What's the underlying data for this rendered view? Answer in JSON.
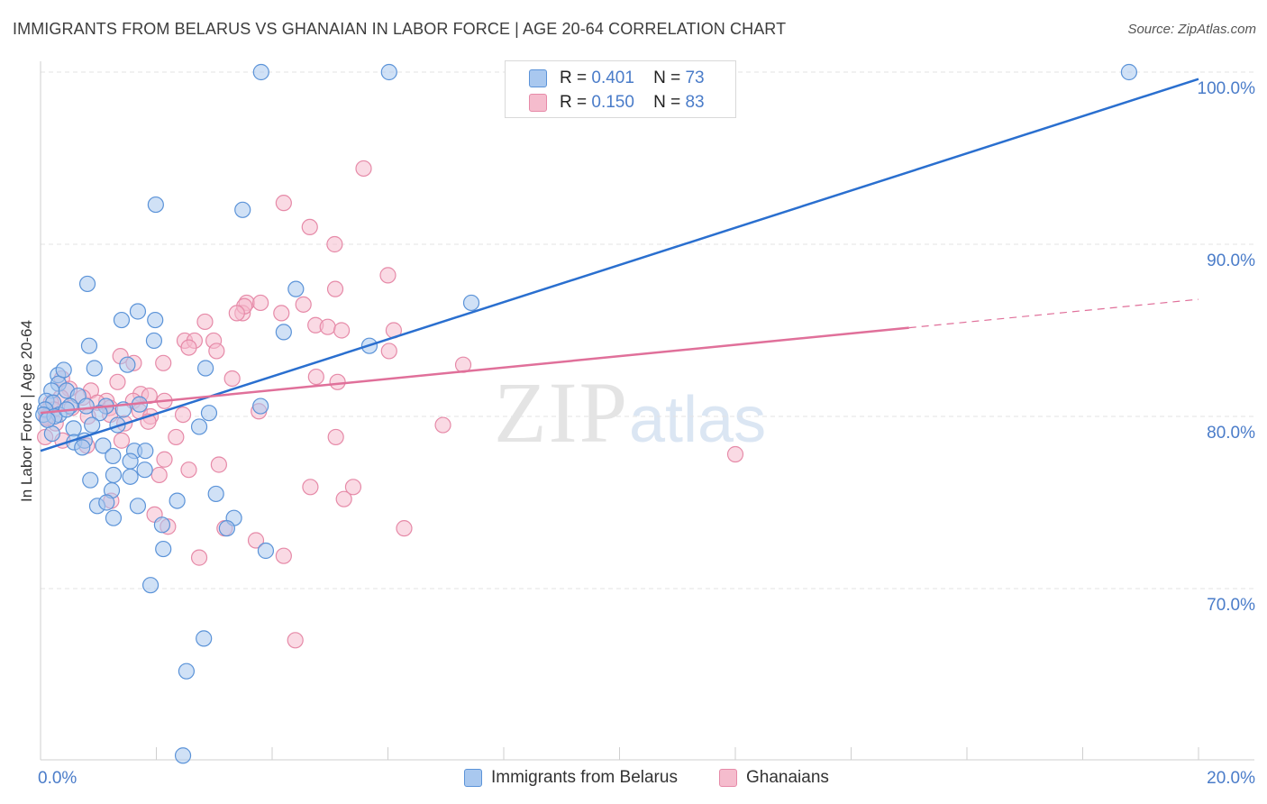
{
  "title": "IMMIGRANTS FROM BELARUS VS GHANAIAN IN LABOR FORCE | AGE 20-64 CORRELATION CHART",
  "source": "Source: ZipAtlas.com",
  "watermark": {
    "zip": "ZIP",
    "atlas": "atlas"
  },
  "stats": {
    "belarus": {
      "r_label": "R =",
      "r_value": "0.401",
      "n_label": "N =",
      "n_value": "73"
    },
    "ghana": {
      "r_label": "R =",
      "r_value": "0.150",
      "n_label": "N =",
      "n_value": "83"
    }
  },
  "legend": {
    "belarus": "Immigrants from Belarus",
    "ghana": "Ghanaians"
  },
  "colors": {
    "blue_fill": "#a9c8ef",
    "blue_stroke": "#5b93d8",
    "blue_line": "#2a6fcf",
    "pink_fill": "#f5bccd",
    "pink_stroke": "#e68aa8",
    "pink_line": "#e0709a",
    "grid": "#e3e3e3"
  },
  "chart_data": {
    "type": "scatter",
    "title": "IMMIGRANTS FROM BELARUS VS GHANAIAN IN LABOR FORCE | AGE 20-64 CORRELATION CHART",
    "xlabel": "",
    "ylabel": "In Labor Force | Age 20-64",
    "xlim": [
      0,
      20
    ],
    "ylim": [
      60,
      101.5
    ],
    "x_tick_labels": [
      "0.0%",
      "20.0%"
    ],
    "y_ticks": [
      70,
      80,
      90,
      100
    ],
    "y_tick_labels": [
      "70.0%",
      "80.0%",
      "90.0%",
      "100.0%"
    ],
    "grid": true,
    "series": [
      {
        "name": "Immigrants from Belarus",
        "r": 0.401,
        "n": 73,
        "trend": {
          "x": [
            0,
            20
          ],
          "y": [
            78.0,
            99.6
          ],
          "dashed_from": null
        },
        "points": [
          [
            3.81,
            100.0
          ],
          [
            6.02,
            100.0
          ],
          [
            18.8,
            100.0
          ],
          [
            1.99,
            92.3
          ],
          [
            3.49,
            92.0
          ],
          [
            0.81,
            87.7
          ],
          [
            4.41,
            87.4
          ],
          [
            7.44,
            86.6
          ],
          [
            1.68,
            86.1
          ],
          [
            1.4,
            85.6
          ],
          [
            1.98,
            85.6
          ],
          [
            4.2,
            84.9
          ],
          [
            1.96,
            84.4
          ],
          [
            0.84,
            84.1
          ],
          [
            5.68,
            84.1
          ],
          [
            1.5,
            83.0
          ],
          [
            0.93,
            82.8
          ],
          [
            2.85,
            82.8
          ],
          [
            0.3,
            82.4
          ],
          [
            0.31,
            81.9
          ],
          [
            0.4,
            82.7
          ],
          [
            0.19,
            81.5
          ],
          [
            0.45,
            81.5
          ],
          [
            0.65,
            81.2
          ],
          [
            0.1,
            80.9
          ],
          [
            0.22,
            80.8
          ],
          [
            0.51,
            80.6
          ],
          [
            0.79,
            80.6
          ],
          [
            1.13,
            80.6
          ],
          [
            1.43,
            80.4
          ],
          [
            0.08,
            80.4
          ],
          [
            0.32,
            80.1
          ],
          [
            0.05,
            80.1
          ],
          [
            0.24,
            80.0
          ],
          [
            1.02,
            80.2
          ],
          [
            1.71,
            80.7
          ],
          [
            2.91,
            80.2
          ],
          [
            3.8,
            80.6
          ],
          [
            0.89,
            79.5
          ],
          [
            1.33,
            79.5
          ],
          [
            0.57,
            79.3
          ],
          [
            0.2,
            79.0
          ],
          [
            2.74,
            79.4
          ],
          [
            0.58,
            78.5
          ],
          [
            0.76,
            78.6
          ],
          [
            1.08,
            78.3
          ],
          [
            0.72,
            78.2
          ],
          [
            1.62,
            78.0
          ],
          [
            1.81,
            78.0
          ],
          [
            1.25,
            77.7
          ],
          [
            1.55,
            77.4
          ],
          [
            1.8,
            76.9
          ],
          [
            1.26,
            76.6
          ],
          [
            0.86,
            76.3
          ],
          [
            1.55,
            76.5
          ],
          [
            3.03,
            75.5
          ],
          [
            1.23,
            75.7
          ],
          [
            2.36,
            75.1
          ],
          [
            0.98,
            74.8
          ],
          [
            1.14,
            75.0
          ],
          [
            1.68,
            74.8
          ],
          [
            1.26,
            74.1
          ],
          [
            3.34,
            74.1
          ],
          [
            2.1,
            73.7
          ],
          [
            3.22,
            73.5
          ],
          [
            2.12,
            72.3
          ],
          [
            3.89,
            72.2
          ],
          [
            1.9,
            70.2
          ],
          [
            2.82,
            67.1
          ],
          [
            2.52,
            65.2
          ],
          [
            2.46,
            60.3
          ],
          [
            0.12,
            79.8
          ],
          [
            0.45,
            80.4
          ]
        ]
      },
      {
        "name": "Ghanaians",
        "r": 0.15,
        "n": 83,
        "trend": {
          "x": [
            0,
            20
          ],
          "y": [
            80.2,
            86.8
          ],
          "dashed_from": 15.0
        },
        "points": [
          [
            5.58,
            94.4
          ],
          [
            4.2,
            92.4
          ],
          [
            4.65,
            91.0
          ],
          [
            5.08,
            90.0
          ],
          [
            6.0,
            88.2
          ],
          [
            5.09,
            87.4
          ],
          [
            3.56,
            86.6
          ],
          [
            3.8,
            86.6
          ],
          [
            4.54,
            86.5
          ],
          [
            3.49,
            86.0
          ],
          [
            3.52,
            86.4
          ],
          [
            3.39,
            86.0
          ],
          [
            4.16,
            86.0
          ],
          [
            2.84,
            85.5
          ],
          [
            4.75,
            85.3
          ],
          [
            4.96,
            85.2
          ],
          [
            5.2,
            85.0
          ],
          [
            6.1,
            85.0
          ],
          [
            2.49,
            84.4
          ],
          [
            2.66,
            84.4
          ],
          [
            2.99,
            84.4
          ],
          [
            2.56,
            84.0
          ],
          [
            3.04,
            83.8
          ],
          [
            6.02,
            83.8
          ],
          [
            1.38,
            83.5
          ],
          [
            1.61,
            83.1
          ],
          [
            2.12,
            83.1
          ],
          [
            3.31,
            82.2
          ],
          [
            4.76,
            82.3
          ],
          [
            5.13,
            82.0
          ],
          [
            7.3,
            83.0
          ],
          [
            0.37,
            82.2
          ],
          [
            1.33,
            82.0
          ],
          [
            0.5,
            81.6
          ],
          [
            0.87,
            81.5
          ],
          [
            1.73,
            81.3
          ],
          [
            1.88,
            81.2
          ],
          [
            0.35,
            81.1
          ],
          [
            0.73,
            81.1
          ],
          [
            1.14,
            80.9
          ],
          [
            1.6,
            80.9
          ],
          [
            2.14,
            80.9
          ],
          [
            0.18,
            80.8
          ],
          [
            0.98,
            80.8
          ],
          [
            1.2,
            80.5
          ],
          [
            0.54,
            80.5
          ],
          [
            0.23,
            80.4
          ],
          [
            0.11,
            80.3
          ],
          [
            1.71,
            80.3
          ],
          [
            1.9,
            80.0
          ],
          [
            2.46,
            80.1
          ],
          [
            3.77,
            80.3
          ],
          [
            0.1,
            80.0
          ],
          [
            0.82,
            80.0
          ],
          [
            1.2,
            80.1
          ],
          [
            1.45,
            79.6
          ],
          [
            0.26,
            79.6
          ],
          [
            0.1,
            79.9
          ],
          [
            1.86,
            79.7
          ],
          [
            6.95,
            79.5
          ],
          [
            0.08,
            78.8
          ],
          [
            0.38,
            78.6
          ],
          [
            1.4,
            78.6
          ],
          [
            2.34,
            78.8
          ],
          [
            5.1,
            78.8
          ],
          [
            0.8,
            78.3
          ],
          [
            12.0,
            77.8
          ],
          [
            2.14,
            77.5
          ],
          [
            3.08,
            77.2
          ],
          [
            2.56,
            76.9
          ],
          [
            2.05,
            76.6
          ],
          [
            4.66,
            75.9
          ],
          [
            5.4,
            75.9
          ],
          [
            5.24,
            75.2
          ],
          [
            1.22,
            75.1
          ],
          [
            1.97,
            74.3
          ],
          [
            2.2,
            73.6
          ],
          [
            3.18,
            73.5
          ],
          [
            6.28,
            73.5
          ],
          [
            3.72,
            72.8
          ],
          [
            2.74,
            71.8
          ],
          [
            4.2,
            71.9
          ],
          [
            4.4,
            67.0
          ]
        ]
      }
    ]
  }
}
